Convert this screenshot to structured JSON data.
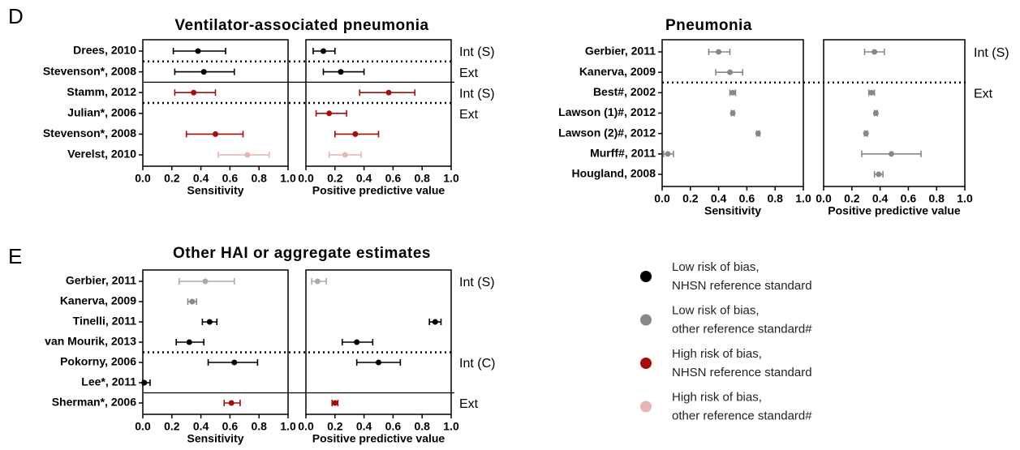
{
  "chart_data": [
    {
      "type": "forest",
      "panel": "D",
      "title": "Ventilator-associated pneumonia",
      "xlim": [
        0,
        1
      ],
      "xticks": [
        {
          "value": 0,
          "label": "0.0"
        },
        {
          "value": 0.2,
          "label": "0.2"
        },
        {
          "value": 0.4,
          "label": "0.4"
        },
        {
          "value": 0.6,
          "label": "0.6"
        },
        {
          "value": 0.8,
          "label": "0.8"
        },
        {
          "value": 1,
          "label": "1.0"
        }
      ],
      "measures": [
        "Sensitivity",
        "Positive predictive value"
      ],
      "blocks": [
        {
          "groups": [
            {
              "label": "Int (S)",
              "studies": [
                {
                  "label": "Drees, 2010",
                  "color": "#000000",
                  "estimates": [
                    [
                      0.38,
                      0.21,
                      0.57
                    ],
                    [
                      0.12,
                      0.05,
                      0.2
                    ]
                  ]
                }
              ]
            },
            {
              "label": "Ext",
              "studies": [
                {
                  "label": "Stevenson*, 2008",
                  "color": "#000000",
                  "estimates": [
                    [
                      0.42,
                      0.22,
                      0.63
                    ],
                    [
                      0.24,
                      0.12,
                      0.4
                    ]
                  ]
                }
              ]
            }
          ]
        },
        {
          "groups": [
            {
              "label": "Int (S)",
              "studies": [
                {
                  "label": "Stamm, 2012",
                  "color": "#a50d0d",
                  "estimates": [
                    [
                      0.35,
                      0.22,
                      0.5
                    ],
                    [
                      0.57,
                      0.37,
                      0.75
                    ]
                  ]
                }
              ]
            },
            {
              "label": "Ext",
              "studies": [
                {
                  "label": "Julian*, 2006",
                  "color": "#a50d0d",
                  "estimates": [
                    null,
                    [
                      0.16,
                      0.07,
                      0.28
                    ]
                  ]
                },
                {
                  "label": "Stevenson*, 2008",
                  "color": "#a50d0d",
                  "estimates": [
                    [
                      0.5,
                      0.3,
                      0.69
                    ],
                    [
                      0.34,
                      0.2,
                      0.5
                    ]
                  ]
                },
                {
                  "label": "Verelst, 2010",
                  "color": "#e8b4b4",
                  "estimates": [
                    [
                      0.72,
                      0.52,
                      0.87
                    ],
                    [
                      0.27,
                      0.16,
                      0.38
                    ]
                  ]
                }
              ]
            }
          ]
        }
      ]
    },
    {
      "type": "forest",
      "title": "Pneumonia",
      "xlim": [
        0,
        1
      ],
      "xticks": [
        {
          "value": 0,
          "label": "0.0"
        },
        {
          "value": 0.2,
          "label": "0.2"
        },
        {
          "value": 0.4,
          "label": "0.4"
        },
        {
          "value": 0.6,
          "label": "0.6"
        },
        {
          "value": 0.8,
          "label": "0.8"
        },
        {
          "value": 1,
          "label": "1.0"
        }
      ],
      "measures": [
        "Sensitivity",
        "Positive predictive value"
      ],
      "blocks": [
        {
          "groups": [
            {
              "label": "Int (S)",
              "studies": [
                {
                  "label": "Gerbier, 2011",
                  "color": "#888888",
                  "estimates": [
                    [
                      0.4,
                      0.33,
                      0.48
                    ],
                    [
                      0.36,
                      0.29,
                      0.43
                    ]
                  ]
                },
                {
                  "label": "Kanerva, 2009",
                  "color": "#888888",
                  "estimates": [
                    [
                      0.48,
                      0.38,
                      0.57
                    ],
                    null
                  ]
                }
              ]
            },
            {
              "label": "Ext",
              "studies": [
                {
                  "label": "Best#, 2002",
                  "color": "#888888",
                  "estimates": [
                    [
                      0.5,
                      0.48,
                      0.52
                    ],
                    [
                      0.34,
                      0.32,
                      0.36
                    ]
                  ]
                },
                {
                  "label": "Lawson (1)#, 2012",
                  "color": "#888888",
                  "estimates": [
                    [
                      0.5,
                      0.49,
                      0.51
                    ],
                    [
                      0.37,
                      0.36,
                      0.38
                    ]
                  ]
                },
                {
                  "label": "Lawson (2)#, 2012",
                  "color": "#888888",
                  "estimates": [
                    [
                      0.68,
                      0.67,
                      0.69
                    ],
                    [
                      0.3,
                      0.29,
                      0.31
                    ]
                  ]
                },
                {
                  "label": "Murff#, 2011",
                  "color": "#888888",
                  "estimates": [
                    [
                      0.04,
                      0.01,
                      0.08
                    ],
                    [
                      0.48,
                      0.27,
                      0.69
                    ]
                  ]
                },
                {
                  "label": "Hougland, 2008",
                  "color": "#888888",
                  "estimates": [
                    null,
                    [
                      0.39,
                      0.36,
                      0.42
                    ]
                  ]
                }
              ]
            }
          ]
        }
      ]
    },
    {
      "type": "forest",
      "panel": "E",
      "title": "Other HAI or aggregate estimates",
      "xlim": [
        0,
        1
      ],
      "xticks": [
        {
          "value": 0,
          "label": "0.0"
        },
        {
          "value": 0.2,
          "label": "0.2"
        },
        {
          "value": 0.4,
          "label": "0.4"
        },
        {
          "value": 0.6,
          "label": "0.6"
        },
        {
          "value": 0.8,
          "label": "0.8"
        },
        {
          "value": 1,
          "label": "1.0"
        }
      ],
      "measures": [
        "Sensitivity",
        "Positive predictive value"
      ],
      "blocks": [
        {
          "groups": [
            {
              "label": "Int (S)",
              "studies": [
                {
                  "label": "Gerbier, 2011",
                  "color": "#aaaaaa",
                  "estimates": [
                    [
                      0.43,
                      0.25,
                      0.63
                    ],
                    [
                      0.08,
                      0.04,
                      0.14
                    ]
                  ]
                },
                {
                  "label": "Kanerva, 2009",
                  "color": "#888888",
                  "estimates": [
                    [
                      0.34,
                      0.31,
                      0.37
                    ],
                    null
                  ]
                },
                {
                  "label": "Tinelli, 2011",
                  "color": "#000000",
                  "estimates": [
                    [
                      0.46,
                      0.41,
                      0.51
                    ],
                    [
                      0.89,
                      0.85,
                      0.93
                    ]
                  ]
                },
                {
                  "label": "van Mourik, 2013",
                  "color": "#000000",
                  "estimates": [
                    [
                      0.32,
                      0.23,
                      0.42
                    ],
                    [
                      0.35,
                      0.25,
                      0.46
                    ]
                  ]
                }
              ]
            },
            {
              "label": "Int (C)",
              "studies": [
                {
                  "label": "Pokorny, 2006",
                  "color": "#000000",
                  "estimates": [
                    [
                      0.63,
                      0.45,
                      0.79
                    ],
                    [
                      0.5,
                      0.35,
                      0.65
                    ]
                  ]
                },
                {
                  "label": "Lee*, 2011",
                  "color": "#000000",
                  "estimates": [
                    [
                      0.01,
                      0,
                      0.05
                    ],
                    null
                  ]
                }
              ]
            }
          ]
        },
        {
          "groups": [
            {
              "label": "Ext",
              "studies": [
                {
                  "label": "Sherman*, 2006",
                  "color": "#a50d0d",
                  "estimates": [
                    [
                      0.61,
                      0.56,
                      0.67
                    ],
                    [
                      0.2,
                      0.18,
                      0.22
                    ]
                  ]
                }
              ]
            }
          ]
        }
      ]
    }
  ],
  "legend": [
    {
      "color": "#000000",
      "lines": [
        "Low risk of bias,",
        "NHSN reference standard"
      ]
    },
    {
      "color": "#888888",
      "lines": [
        "Low risk of bias,",
        "other reference standard#"
      ]
    },
    {
      "color": "#a50d0d",
      "lines": [
        "High risk of bias,",
        "NHSN reference standard"
      ]
    },
    {
      "color": "#e8b4b4",
      "lines": [
        "High risk of bias,",
        "other reference standard#"
      ]
    }
  ]
}
